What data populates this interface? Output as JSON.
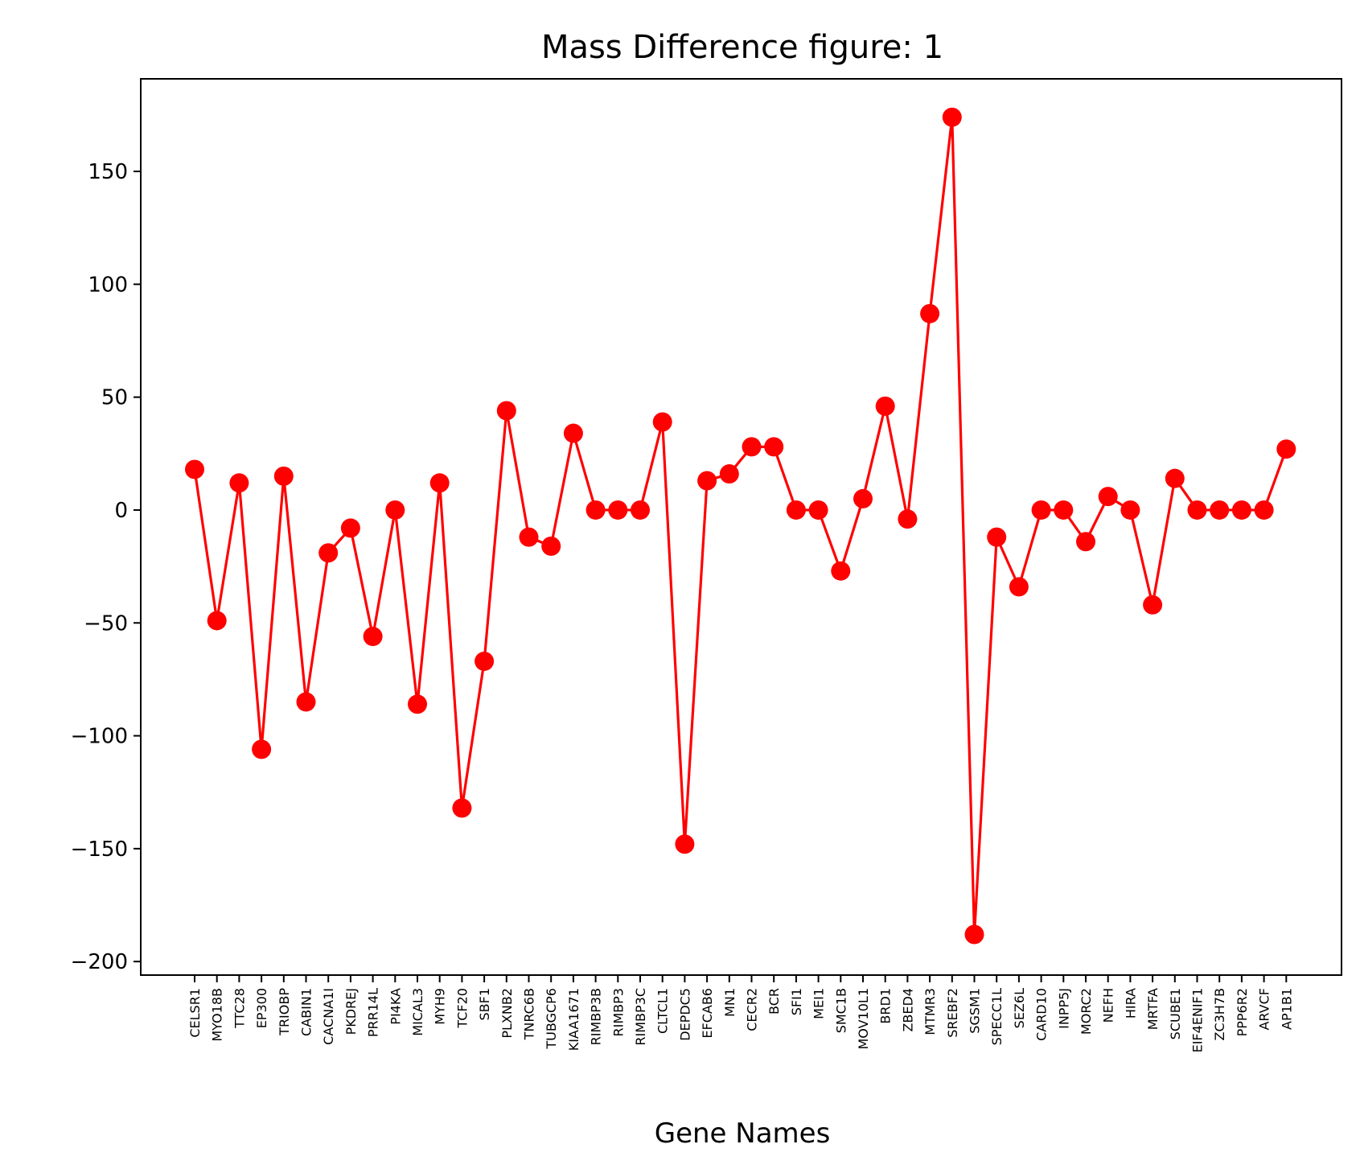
{
  "chart_data": {
    "type": "line",
    "title": "Mass Difference figure: 1",
    "xlabel": "Gene Names",
    "ylabel": "",
    "ylim": [
      -206,
      191
    ],
    "yticks": [
      150,
      100,
      50,
      0,
      -50,
      -100,
      -150,
      -200
    ],
    "ytick_labels": [
      "150",
      "100",
      "50",
      "0",
      "−50",
      "−100",
      "−150",
      "−200"
    ],
    "grid": false,
    "line_color": "#ff0000",
    "marker": "circle",
    "categories": [
      "CELSR1",
      "MYO18B",
      "TTC28",
      "EP300",
      "TRIOBP",
      "CABIN1",
      "CACNA1I",
      "PKDREJ",
      "PRR14L",
      "PI4KA",
      "MICAL3",
      "MYH9",
      "TCF20",
      "SBF1",
      "PLXNB2",
      "TNRC6B",
      "TUBGCP6",
      "KIAA1671",
      "RIMBP3B",
      "RIMBP3",
      "RIMBP3C",
      "CLTCL1",
      "DEPDC5",
      "EFCAB6",
      "MN1",
      "CECR2",
      "BCR",
      "SFI1",
      "MEI1",
      "SMC1B",
      "MOV10L1",
      "BRD1",
      "ZBED4",
      "MTMR3",
      "SREBF2",
      "SGSM1",
      "SPECC1L",
      "SEZ6L",
      "CARD10",
      "INPP5J",
      "MORC2",
      "NEFH",
      "HIRA",
      "MRTFA",
      "SCUBE1",
      "EIF4ENIF1",
      "ZC3H7B",
      "PPP6R2",
      "ARVCF",
      "AP1B1"
    ],
    "values": [
      18,
      -49,
      12,
      -106,
      15,
      -85,
      -19,
      -8,
      -56,
      0,
      -86,
      12,
      -132,
      -67,
      44,
      -12,
      -16,
      34,
      0,
      0,
      0,
      39,
      -148,
      13,
      16,
      28,
      28,
      0,
      0,
      -27,
      5,
      46,
      -4,
      87,
      174,
      -188,
      -12,
      -34,
      0,
      0,
      -14,
      6,
      0,
      -42,
      14,
      0,
      0,
      0,
      0,
      27
    ]
  }
}
